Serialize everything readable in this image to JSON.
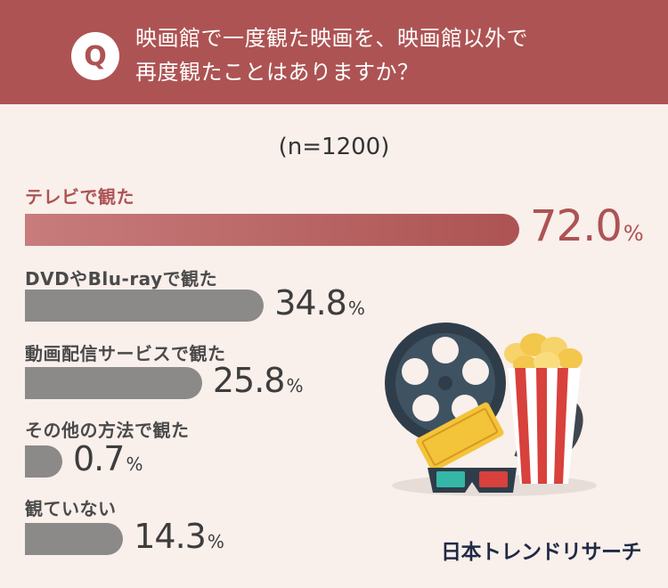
{
  "header": {
    "badge": "Q",
    "question_line1": "映画館で一度観た映画を、映画館以外で",
    "question_line2": "再度観たことはありますか？"
  },
  "sample_size": "(n=1200)",
  "brand": "日本トレンドリサーチ",
  "percent_unit": "%",
  "colors": {
    "accent": "#ad5353",
    "bar": "#8c8989",
    "background": "#f9efeb"
  },
  "icons": [
    "film-reel-icon",
    "popcorn-icon",
    "cinema-ticket-icon",
    "3d-glasses-icon"
  ],
  "chart_data": {
    "type": "bar",
    "orientation": "horizontal",
    "categories": [
      "テレビで観た",
      "DVDやBlu-rayで観た",
      "動画配信サービスで観た",
      "その他の方法で観た",
      "観ていない"
    ],
    "values": [
      72.0,
      34.8,
      25.8,
      0.7,
      14.3
    ],
    "value_labels": [
      "72.0",
      "34.8",
      "25.8",
      "0.7",
      "14.3"
    ],
    "highlight_index": 0,
    "unit": "%",
    "xlim": [
      0,
      100
    ]
  }
}
